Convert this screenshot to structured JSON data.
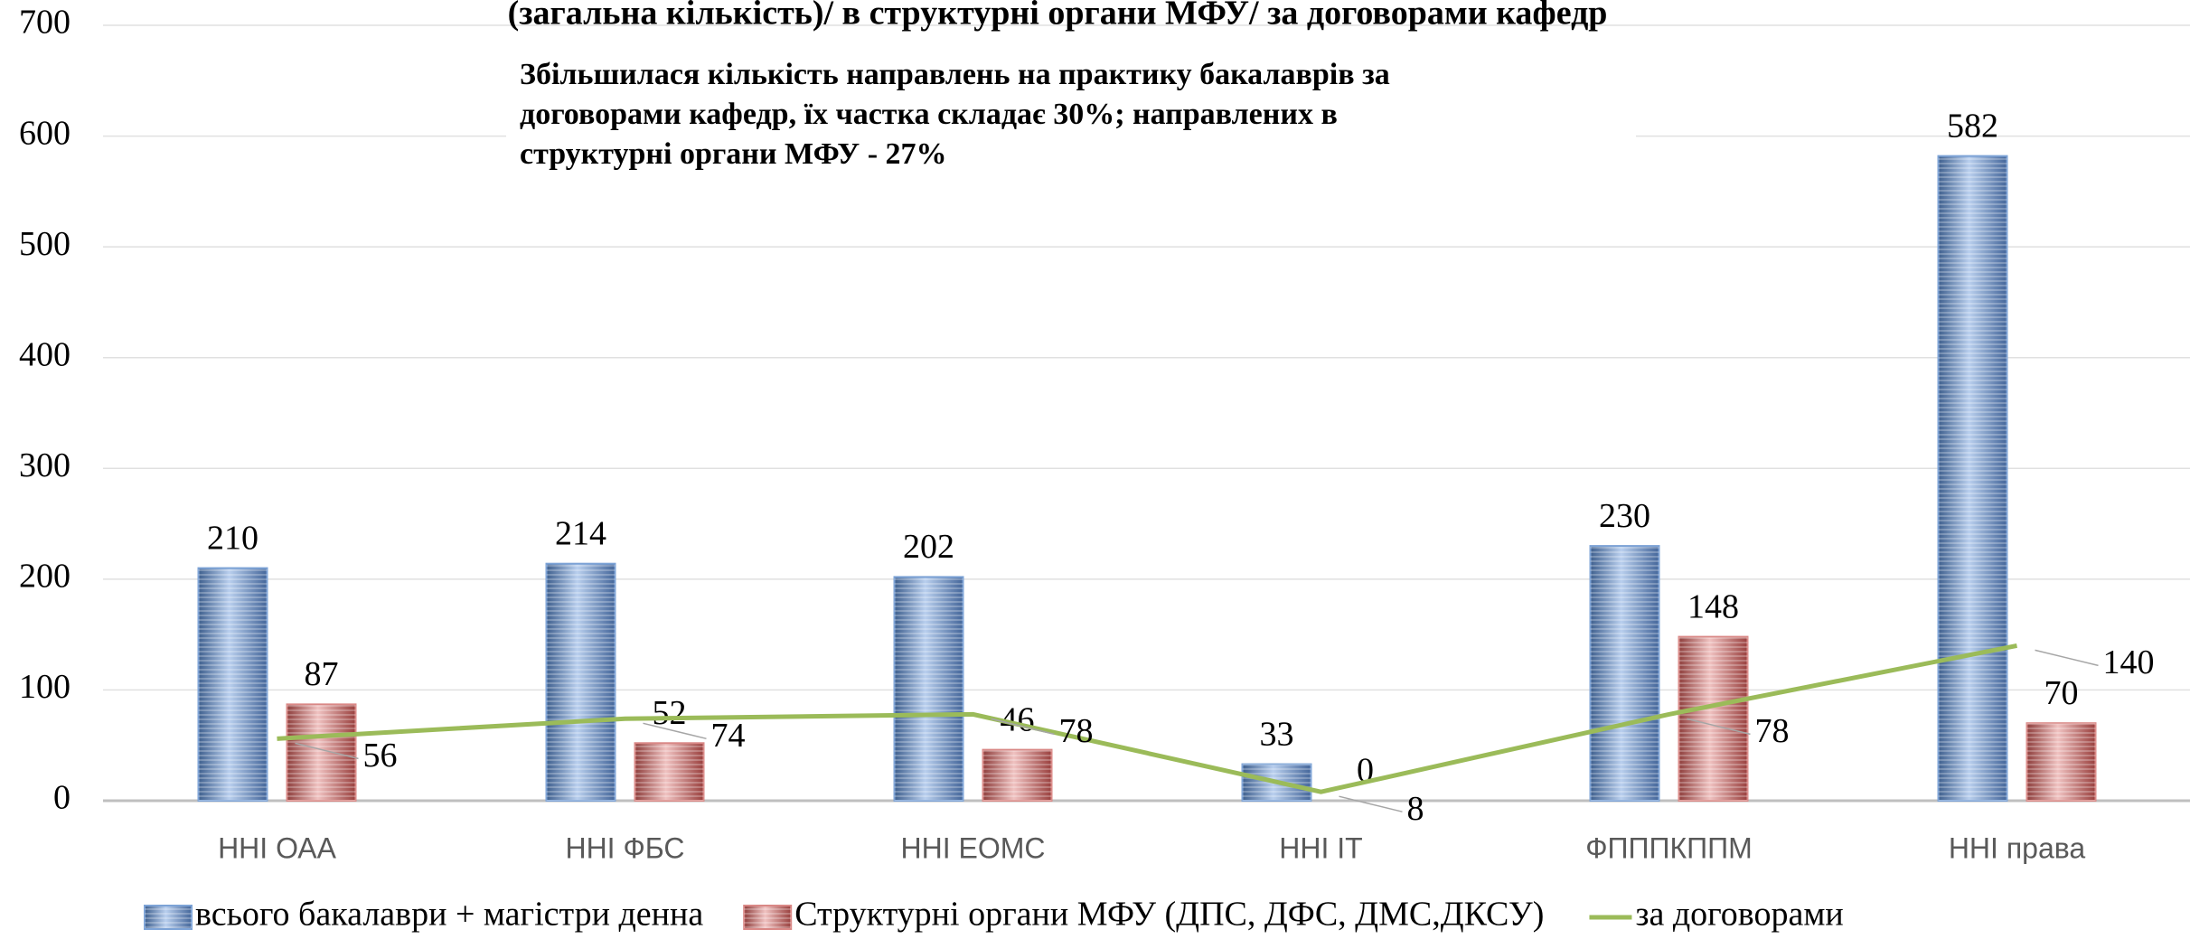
{
  "chart_data": {
    "type": "bar",
    "title": "(загальна кількість)/ в структурні органи МФУ/ за договорами кафедр",
    "annotation": [
      "Збільшилася кількість направлень на практику бакалаврів за",
      "договорами кафедр, їх частка складає 30%; направлених в",
      "структурні органи МФУ - 27%"
    ],
    "categories": [
      "ННІ ОАА",
      "ННІ ФБС",
      "ННІ ЕОМС",
      "ННІ ІТ",
      "ФПППКППМ",
      "ННІ права"
    ],
    "series": [
      {
        "name": "всього бакалаври + магістри денна",
        "type": "bar",
        "color": "#7da3d6",
        "values": [
          210,
          214,
          202,
          33,
          230,
          582
        ]
      },
      {
        "name": "Структурні органи МФУ (ДПС, ДФС, ДМС,ДКСУ)",
        "type": "bar",
        "color": "#d98886",
        "values": [
          87,
          52,
          46,
          0,
          148,
          70
        ]
      },
      {
        "name": "за договорами",
        "type": "line",
        "color": "#9bbb59",
        "values": [
          56,
          74,
          78,
          8,
          78,
          140
        ]
      }
    ],
    "ylim": [
      0,
      700
    ],
    "yticks": [
      0,
      100,
      200,
      300,
      400,
      500,
      600,
      700
    ],
    "grid": true
  }
}
